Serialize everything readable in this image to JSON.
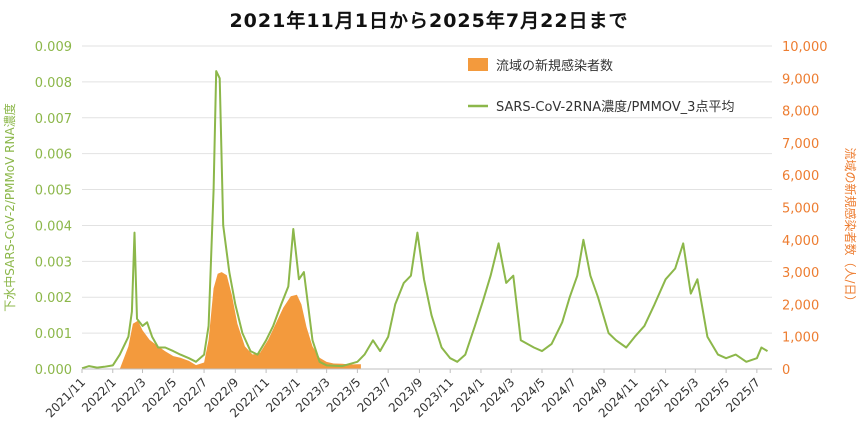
{
  "title": "2021年11月1日から2025年7月22日まで",
  "colors": {
    "line": "#8CB74A",
    "bar": "#F39A3D",
    "grid": "#E2E2E2",
    "axis_left": "#8CB74A",
    "axis_right": "#ED7D31"
  },
  "chart_data": {
    "type": "combo",
    "title": "2021年11月1日から2025年7月22日まで",
    "y_left": {
      "label": "下水中SARS-CoV-2/PMMoV RNA濃度",
      "range": [
        0,
        0.009
      ],
      "ticks": [
        "0.000",
        "0.001",
        "0.002",
        "0.003",
        "0.004",
        "0.005",
        "0.006",
        "0.007",
        "0.008",
        "0.009"
      ]
    },
    "y_right": {
      "label": "流域の新規感染者数（人/日）",
      "range": [
        0,
        10000
      ],
      "ticks": [
        "0",
        "1,000",
        "2,000",
        "3,000",
        "4,000",
        "5,000",
        "6,000",
        "7,000",
        "8,000",
        "9,000",
        "10,000"
      ]
    },
    "x": {
      "range_months": [
        "2021-11",
        "2025-07"
      ],
      "tick_labels": [
        "2021/11",
        "2022/1",
        "2022/3",
        "2022/5",
        "2022/7",
        "2022/9",
        "2022/11",
        "2023/1",
        "2023/3",
        "2023/5",
        "2023/7",
        "2023/9",
        "2023/11",
        "2024/1",
        "2024/3",
        "2024/5",
        "2024/7",
        "2024/9",
        "2024/11",
        "2025/1",
        "2025/3",
        "2025/5",
        "2025/7"
      ]
    },
    "legend": {
      "placement": "top-center"
    },
    "series": [
      {
        "name": "流域の新規感染者数",
        "kind": "bar",
        "axis": "right",
        "points": [
          [
            "2022-01-15",
            0
          ],
          [
            "2022-02-01",
            700
          ],
          [
            "2022-02-10",
            1400
          ],
          [
            "2022-02-20",
            1500
          ],
          [
            "2022-03-01",
            1200
          ],
          [
            "2022-03-15",
            900
          ],
          [
            "2022-04-01",
            700
          ],
          [
            "2022-04-15",
            550
          ],
          [
            "2022-05-01",
            400
          ],
          [
            "2022-05-15",
            350
          ],
          [
            "2022-06-01",
            250
          ],
          [
            "2022-06-15",
            120
          ],
          [
            "2022-07-01",
            200
          ],
          [
            "2022-07-10",
            900
          ],
          [
            "2022-07-20",
            2500
          ],
          [
            "2022-07-28",
            2950
          ],
          [
            "2022-08-05",
            3000
          ],
          [
            "2022-08-15",
            2900
          ],
          [
            "2022-08-25",
            2300
          ],
          [
            "2022-09-05",
            1400
          ],
          [
            "2022-09-20",
            700
          ],
          [
            "2022-10-05",
            450
          ],
          [
            "2022-10-20",
            500
          ],
          [
            "2022-11-05",
            900
          ],
          [
            "2022-11-20",
            1400
          ],
          [
            "2022-12-05",
            1900
          ],
          [
            "2022-12-20",
            2250
          ],
          [
            "2023-01-01",
            2300
          ],
          [
            "2023-01-10",
            2000
          ],
          [
            "2023-01-20",
            1300
          ],
          [
            "2023-02-01",
            700
          ],
          [
            "2023-02-15",
            350
          ],
          [
            "2023-03-01",
            220
          ],
          [
            "2023-03-15",
            170
          ],
          [
            "2023-04-01",
            160
          ],
          [
            "2023-04-15",
            140
          ],
          [
            "2023-05-01",
            150
          ],
          [
            "2023-05-08",
            150
          ]
        ]
      },
      {
        "name": "SARS-CoV-2RNA濃度/PMMOV_3点平均",
        "kind": "line",
        "axis": "left",
        "points": [
          [
            "2021-11-01",
            2e-05
          ],
          [
            "2021-11-15",
            8e-05
          ],
          [
            "2021-12-01",
            4e-05
          ],
          [
            "2021-12-15",
            6e-05
          ],
          [
            "2022-01-01",
            0.0001
          ],
          [
            "2022-01-15",
            0.0004
          ],
          [
            "2022-02-01",
            0.0009
          ],
          [
            "2022-02-08",
            0.0016
          ],
          [
            "2022-02-13",
            0.0038
          ],
          [
            "2022-02-18",
            0.0014
          ],
          [
            "2022-03-01",
            0.0012
          ],
          [
            "2022-03-10",
            0.0013
          ],
          [
            "2022-03-20",
            0.0009
          ],
          [
            "2022-04-01",
            0.0006
          ],
          [
            "2022-04-15",
            0.0006
          ],
          [
            "2022-05-01",
            0.0005
          ],
          [
            "2022-05-15",
            0.0004
          ],
          [
            "2022-06-01",
            0.0003
          ],
          [
            "2022-06-15",
            0.0002
          ],
          [
            "2022-07-01",
            0.0004
          ],
          [
            "2022-07-10",
            0.0012
          ],
          [
            "2022-07-20",
            0.005
          ],
          [
            "2022-07-25",
            0.0083
          ],
          [
            "2022-08-01",
            0.0081
          ],
          [
            "2022-08-08",
            0.004
          ],
          [
            "2022-08-20",
            0.0027
          ],
          [
            "2022-09-01",
            0.0018
          ],
          [
            "2022-09-15",
            0.001
          ],
          [
            "2022-10-01",
            0.0005
          ],
          [
            "2022-10-15",
            0.0004
          ],
          [
            "2022-11-01",
            0.0008
          ],
          [
            "2022-11-15",
            0.0012
          ],
          [
            "2022-12-01",
            0.0018
          ],
          [
            "2022-12-15",
            0.0023
          ],
          [
            "2022-12-25",
            0.0039
          ],
          [
            "2023-01-05",
            0.0025
          ],
          [
            "2023-01-15",
            0.0027
          ],
          [
            "2023-02-01",
            0.0008
          ],
          [
            "2023-02-15",
            0.0002
          ],
          [
            "2023-03-01",
            0.0001
          ],
          [
            "2023-04-01",
            8e-05
          ],
          [
            "2023-05-01",
            0.0002
          ],
          [
            "2023-05-15",
            0.0004
          ],
          [
            "2023-06-01",
            0.0008
          ],
          [
            "2023-06-15",
            0.0005
          ],
          [
            "2023-07-01",
            0.0009
          ],
          [
            "2023-07-15",
            0.0018
          ],
          [
            "2023-08-01",
            0.0024
          ],
          [
            "2023-08-15",
            0.0026
          ],
          [
            "2023-08-28",
            0.0038
          ],
          [
            "2023-09-10",
            0.0025
          ],
          [
            "2023-09-25",
            0.0015
          ],
          [
            "2023-10-15",
            0.0006
          ],
          [
            "2023-11-01",
            0.0003
          ],
          [
            "2023-11-15",
            0.0002
          ],
          [
            "2023-12-01",
            0.0004
          ],
          [
            "2023-12-20",
            0.0012
          ],
          [
            "2024-01-05",
            0.0019
          ],
          [
            "2024-01-20",
            0.0026
          ],
          [
            "2024-02-05",
            0.0035
          ],
          [
            "2024-02-20",
            0.0024
          ],
          [
            "2024-03-05",
            0.0026
          ],
          [
            "2024-03-20",
            0.0008
          ],
          [
            "2024-04-15",
            0.0006
          ],
          [
            "2024-05-01",
            0.0005
          ],
          [
            "2024-05-20",
            0.0007
          ],
          [
            "2024-06-10",
            0.0013
          ],
          [
            "2024-06-25",
            0.002
          ],
          [
            "2024-07-10",
            0.0026
          ],
          [
            "2024-07-22",
            0.0036
          ],
          [
            "2024-08-05",
            0.0026
          ],
          [
            "2024-08-20",
            0.002
          ],
          [
            "2024-09-10",
            0.001
          ],
          [
            "2024-09-25",
            0.0008
          ],
          [
            "2024-10-15",
            0.0006
          ],
          [
            "2024-11-01",
            0.0009
          ],
          [
            "2024-11-20",
            0.0012
          ],
          [
            "2024-12-10",
            0.0018
          ],
          [
            "2025-01-01",
            0.0025
          ],
          [
            "2025-01-20",
            0.0028
          ],
          [
            "2025-02-05",
            0.0035
          ],
          [
            "2025-02-20",
            0.0021
          ],
          [
            "2025-03-05",
            0.0025
          ],
          [
            "2025-03-25",
            0.0009
          ],
          [
            "2025-04-15",
            0.0004
          ],
          [
            "2025-05-01",
            0.0003
          ],
          [
            "2025-05-20",
            0.0004
          ],
          [
            "2025-06-10",
            0.0002
          ],
          [
            "2025-07-01",
            0.0003
          ],
          [
            "2025-07-10",
            0.0006
          ],
          [
            "2025-07-22",
            0.0005
          ]
        ]
      }
    ]
  }
}
